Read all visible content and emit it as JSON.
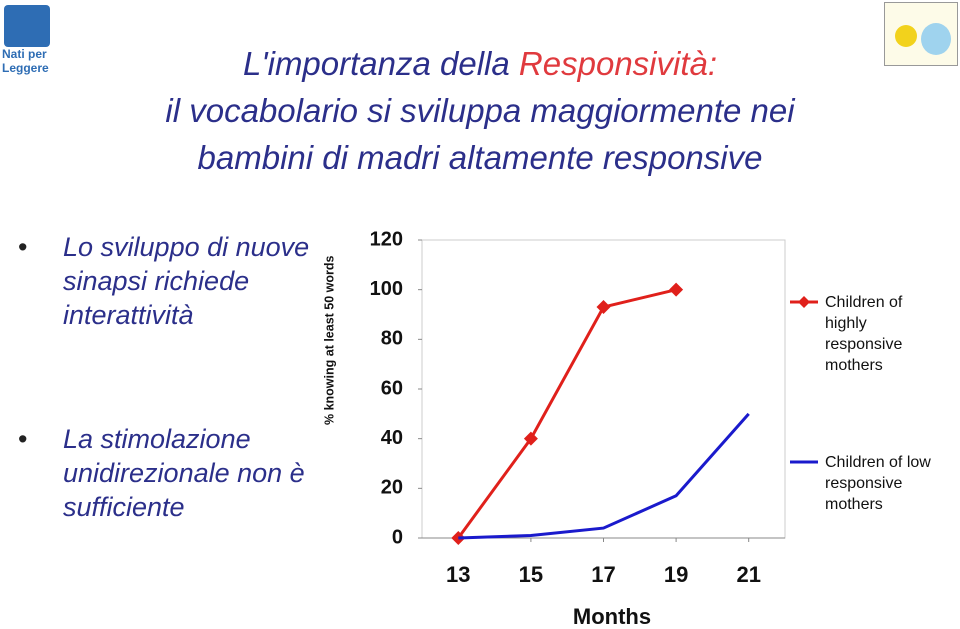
{
  "logo": {
    "lines": [
      "Nati per",
      "Leggere"
    ]
  },
  "title": {
    "line1": "L'importanza della ",
    "line1_highlight": "Responsività:",
    "line2": "il vocabolario si sviluppa maggiormente nei",
    "line3": "bambini di madri altamente responsive"
  },
  "bullets": [
    "Lo sviluppo di nuove sinapsi richiede interattività",
    "La stimolazione unidirezionale non è sufficiente"
  ],
  "chart_data": {
    "type": "line",
    "y_label": "% knowing at least 50 words",
    "x_label": "Months",
    "x": [
      13,
      15,
      17,
      19,
      21
    ],
    "xlim": [
      12,
      22
    ],
    "xticks": [
      13,
      15,
      17,
      19,
      21
    ],
    "ylim": [
      0,
      120
    ],
    "yticks": [
      0,
      20,
      40,
      60,
      80,
      100,
      120
    ],
    "series": [
      {
        "name": "Children of highly responsive mothers",
        "color": "#e0201b",
        "marker": "diamond",
        "values": [
          0,
          40,
          93,
          100,
          null
        ]
      },
      {
        "name": "Children of low responsive mothers",
        "color": "#1a1acc",
        "marker": "none",
        "values": [
          0,
          1,
          4,
          17,
          50
        ]
      }
    ]
  }
}
